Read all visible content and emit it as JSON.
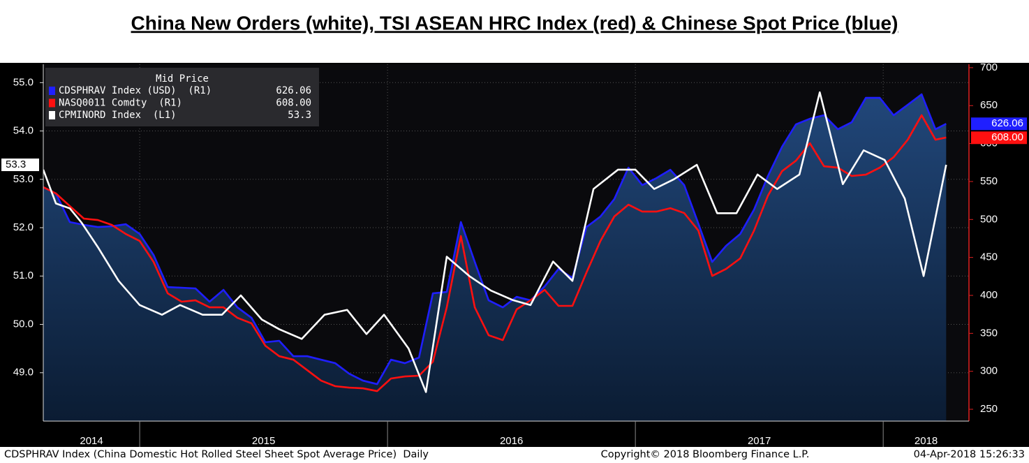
{
  "chart_data": {
    "type": "line",
    "title": "China New Orders (white), TSI ASEAN HRC Index (red) & Chinese Spot Price (blue)",
    "legend_title": "Mid Price",
    "xlim": [
      2014.611,
      2018.346
    ],
    "xticks": [
      2014,
      2015,
      2016,
      2017,
      2018
    ],
    "ylim": [
      48.0,
      55.38
    ],
    "yticks": [
      {
        "value": 49,
        "label": "49.0"
      },
      {
        "value": 50,
        "label": "50.0"
      },
      {
        "value": 51,
        "label": "51.0"
      },
      {
        "value": 52,
        "label": "52.0"
      },
      {
        "value": 53,
        "label": "53.0"
      },
      {
        "value": 54,
        "label": "54.0"
      },
      {
        "value": 55,
        "label": "55.0"
      }
    ],
    "y2lim": [
      234.4,
      704.5
    ],
    "y2ticks": [
      250,
      300,
      350,
      400,
      450,
      500,
      550,
      600,
      650,
      700
    ],
    "grid": true,
    "legend": "upper left",
    "series": [
      {
        "name": "CDSPHRAV Index (USD)  (R1)",
        "color": "#1f1fff",
        "axis": "y2",
        "area": true,
        "last_label": "626.06",
        "x": [
          2014.611,
          2014.662,
          2014.718,
          2014.775,
          2014.831,
          2014.887,
          2014.944,
          2015.0,
          2015.056,
          2015.113,
          2015.169,
          2015.225,
          2015.282,
          2015.338,
          2015.394,
          2015.451,
          2015.507,
          2015.563,
          2015.62,
          2015.676,
          2015.732,
          2015.789,
          2015.845,
          2015.901,
          2015.958,
          2016.014,
          2016.07,
          2016.127,
          2016.183,
          2016.239,
          2016.296,
          2016.352,
          2016.408,
          2016.465,
          2016.521,
          2016.577,
          2016.634,
          2016.69,
          2016.746,
          2016.803,
          2016.859,
          2016.915,
          2016.972,
          2017.028,
          2017.085,
          2017.141,
          2017.197,
          2017.254,
          2017.31,
          2017.366,
          2017.423,
          2017.479,
          2017.535,
          2017.592,
          2017.648,
          2017.704,
          2017.761,
          2017.817,
          2017.873,
          2017.93,
          2017.986,
          2018.042,
          2018.099,
          2018.155,
          2018.211,
          2018.254
        ],
        "values": [
          542.5,
          534.3,
          496.6,
          492.9,
          490.1,
          491.0,
          493.8,
          480.9,
          453.3,
          411.0,
          410.1,
          409.2,
          391.7,
          407.3,
          384.3,
          370.5,
          338.3,
          340.2,
          319.9,
          319.9,
          315.3,
          310.7,
          296.9,
          287.7,
          283.1,
          315.3,
          310.7,
          318.1,
          402.7,
          404.6,
          496.6,
          444.1,
          393.5,
          384.3,
          398.1,
          393.5,
          411.9,
          434.9,
          423.0,
          490.1,
          503.9,
          526.9,
          568.3,
          545.3,
          554.5,
          565.5,
          545.3,
          494.7,
          444.1,
          465.3,
          480.9,
          513.1,
          557.3,
          595.9,
          625.3,
          632.7,
          637.3,
          618.9,
          628.1,
          660.3,
          660.3,
          637.3,
          651.1,
          664.9,
          618.9,
          626.06
        ]
      },
      {
        "name": "NASQ0011 Comdty  (R1)",
        "color": "#ff1010",
        "axis": "y2",
        "last_label": "608.00",
        "x": [
          2014.611,
          2014.662,
          2014.718,
          2014.775,
          2014.831,
          2014.887,
          2014.944,
          2015.0,
          2015.056,
          2015.113,
          2015.169,
          2015.225,
          2015.282,
          2015.338,
          2015.394,
          2015.451,
          2015.507,
          2015.563,
          2015.62,
          2015.676,
          2015.732,
          2015.789,
          2015.845,
          2015.901,
          2015.958,
          2016.014,
          2016.07,
          2016.127,
          2016.183,
          2016.239,
          2016.296,
          2016.352,
          2016.408,
          2016.465,
          2016.521,
          2016.577,
          2016.634,
          2016.69,
          2016.746,
          2016.803,
          2016.859,
          2016.915,
          2016.972,
          2017.028,
          2017.085,
          2017.141,
          2017.197,
          2017.254,
          2017.31,
          2017.366,
          2017.423,
          2017.479,
          2017.535,
          2017.592,
          2017.648,
          2017.704,
          2017.761,
          2017.817,
          2017.873,
          2017.93,
          2017.986,
          2018.042,
          2018.099,
          2018.155,
          2018.211,
          2018.254
        ],
        "values": [
          542.5,
          534.3,
          517.7,
          501.1,
          499.3,
          492.9,
          480.9,
          471.7,
          444.1,
          402.7,
          391.7,
          393.5,
          384.3,
          384.3,
          370.5,
          363.2,
          333.7,
          319.9,
          315.3,
          301.5,
          287.7,
          280.4,
          278.5,
          277.6,
          273.9,
          290.5,
          293.2,
          294.2,
          312.6,
          384.3,
          478.2,
          384.3,
          347.5,
          341.1,
          381.6,
          393.5,
          407.3,
          386.2,
          386.2,
          430.3,
          471.7,
          503.9,
          519.5,
          510.4,
          510.4,
          514.9,
          508.5,
          485.5,
          425.7,
          434.9,
          448.7,
          485.5,
          531.5,
          563.7,
          577.5,
          600.5,
          570.1,
          568.3,
          557.3,
          559.1,
          568.3,
          582.1,
          605.1,
          637.3,
          605.1,
          608
        ]
      },
      {
        "name": "CPMINORD Index  (L1)",
        "color": "#ffffff",
        "axis": "y",
        "last_label": "53.3",
        "x": [
          2014.611,
          2014.662,
          2014.718,
          2014.766,
          2014.831,
          2014.915,
          2015.0,
          2015.09,
          2015.163,
          2015.254,
          2015.332,
          2015.408,
          2015.493,
          2015.563,
          2015.654,
          2015.746,
          2015.837,
          2015.915,
          2015.986,
          2016.085,
          2016.155,
          2016.239,
          2016.33,
          2016.417,
          2016.507,
          2016.577,
          2016.668,
          2016.746,
          2016.831,
          2016.93,
          2017.0,
          2017.076,
          2017.155,
          2017.248,
          2017.33,
          2017.408,
          2017.493,
          2017.572,
          2017.662,
          2017.744,
          2017.837,
          2017.921,
          2018.006,
          2018.087,
          2018.163,
          2018.254
        ],
        "values": [
          53.2,
          52.5,
          52.4,
          52.1,
          51.6,
          50.9,
          50.4,
          50.2,
          50.4,
          50.2,
          50.2,
          50.6,
          50.1,
          49.9,
          49.7,
          50.2,
          50.3,
          49.8,
          50.2,
          49.5,
          48.6,
          51.4,
          51.0,
          50.7,
          50.5,
          50.4,
          51.3,
          50.9,
          52.8,
          53.2,
          53.2,
          52.8,
          53.0,
          53.3,
          52.3,
          52.3,
          53.1,
          52.8,
          53.1,
          54.8,
          52.9,
          53.6,
          53.4,
          52.6,
          51.0,
          53.3
        ]
      }
    ],
    "footer": {
      "description": "CDSPHRAV Index (China Domestic Hot Rolled Steel Sheet Spot Average Price)  Daily",
      "copyright": "Copyright© 2018 Bloomberg Finance L.P.",
      "timestamp": "04-Apr-2018 15:26:33"
    }
  }
}
